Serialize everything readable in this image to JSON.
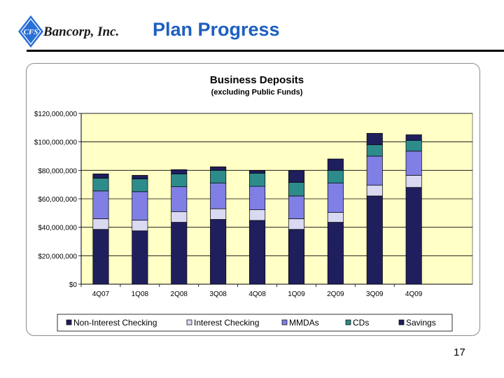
{
  "header": {
    "logo_text": "CFS",
    "company": "Bancorp, Inc.",
    "title": "Plan Progress"
  },
  "page_number": "17",
  "colors": {
    "title_blue": "#1f5fbf",
    "plot_bg": "#ffffc6",
    "logo_blue": "#2a6fd6"
  },
  "chart_data": {
    "type": "bar",
    "stacked": true,
    "title": "Business Deposits",
    "subtitle": "(excluding Public Funds)",
    "xlabel": "",
    "ylabel": "",
    "categories": [
      "4Q07",
      "1Q08",
      "2Q08",
      "3Q08",
      "4Q08",
      "1Q09",
      "2Q09",
      "3Q09",
      "4Q09"
    ],
    "ylim": [
      0,
      120000000
    ],
    "yticks": [
      0,
      20000000,
      40000000,
      60000000,
      80000000,
      100000000,
      120000000
    ],
    "ytick_labels": [
      "$0",
      "$20,000,000",
      "$40,000,000",
      "$60,000,000",
      "$80,000,000",
      "$100,000,000",
      "$120,000,000"
    ],
    "grid": true,
    "legend_position": "bottom",
    "series": [
      {
        "name": "Non-Interest Checking",
        "color": "#1f1f5e",
        "values": [
          38500000,
          37500000,
          43500000,
          45500000,
          44800000,
          38500000,
          43500000,
          62000000,
          68000000
        ]
      },
      {
        "name": "Interest Checking",
        "color": "#d9d9f2",
        "values": [
          7500000,
          7500000,
          7500000,
          7500000,
          7500000,
          7500000,
          7000000,
          7500000,
          8500000
        ]
      },
      {
        "name": "MMDAs",
        "color": "#7f7fe6",
        "values": [
          19500000,
          20000000,
          17500000,
          18000000,
          16500000,
          16000000,
          20500000,
          20500000,
          17000000
        ]
      },
      {
        "name": "CDs",
        "color": "#2e8b8b",
        "values": [
          9000000,
          9000000,
          9000000,
          9000000,
          9200000,
          9500000,
          9000000,
          8000000,
          7500000
        ]
      },
      {
        "name": "Savings",
        "color": "#1f1f5e",
        "values": [
          3000000,
          2500000,
          3000000,
          2500000,
          1800000,
          8500000,
          8000000,
          8000000,
          4000000
        ]
      }
    ]
  }
}
